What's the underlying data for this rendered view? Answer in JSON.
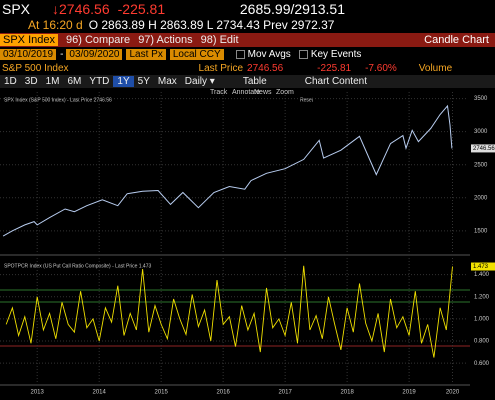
{
  "header": {
    "ticker": "SPX",
    "price": "↓2746.56",
    "change": "-225.81",
    "range": "2685.99/2913.51",
    "time": "At 16:20 d",
    "quote": "O 2863.89 H 2863.89 L 2734.43 Prev 2972.37"
  },
  "menu": {
    "security": "SPX Index",
    "items": [
      "96) Compare",
      "97) Actions",
      "98) Edit"
    ],
    "title": "Candle Chart"
  },
  "settings": {
    "start": "03/10/2019",
    "end": "03/09/2020",
    "field": "Last Px",
    "currency": "Local CCY",
    "options": [
      "Mov Avgs",
      "Key Events"
    ]
  },
  "info": {
    "name": "S&P 500 Index",
    "last_label": "Last Price",
    "last": "2746.56",
    "change": "-225.81",
    "pct": "-7.60%",
    "volume": "Volume"
  },
  "periods": [
    "1D",
    "3D",
    "1M",
    "6M",
    "YTD",
    "1Y",
    "5Y",
    "Max"
  ],
  "active_period": 5,
  "frequency": "Daily ▾",
  "table": "Table",
  "chart_content": "Chart Content",
  "tools": [
    "Track",
    "Annotate",
    "News",
    "Zoom"
  ],
  "reset": "Reset",
  "charts": [
    {
      "type": "line",
      "title": "SPX Index (S&P 500 Index) - Last Price 2746.56",
      "color": "#b8cdf0",
      "xlim": [
        2012.9,
        2020.45
      ],
      "ylim": [
        1180,
        3600
      ],
      "yticks": [
        1500,
        2000,
        2500,
        3000,
        3500
      ],
      "x": [
        2012.95,
        2013.1,
        2013.3,
        2013.45,
        2013.5,
        2013.7,
        2013.95,
        2014.1,
        2014.3,
        2014.55,
        2014.8,
        2014.95,
        2015.2,
        2015.45,
        2015.65,
        2015.85,
        2016.1,
        2016.35,
        2016.6,
        2016.85,
        2016.95,
        2017.2,
        2017.5,
        2017.8,
        2018.05,
        2018.12,
        2018.4,
        2018.7,
        2018.97,
        2019.2,
        2019.4,
        2019.45,
        2019.55,
        2019.65,
        2019.85,
        2020.0,
        2020.12,
        2020.16,
        2020.19
      ],
      "values": [
        1420,
        1500,
        1590,
        1640,
        1590,
        1700,
        1830,
        1790,
        1880,
        1970,
        1880,
        2060,
        2100,
        2110,
        1900,
        2080,
        1850,
        2080,
        2170,
        2130,
        2260,
        2370,
        2440,
        2580,
        2870,
        2600,
        2720,
        2930,
        2350,
        2820,
        2940,
        2750,
        3020,
        2850,
        3050,
        3260,
        3390,
        3100,
        2746.56
      ]
    },
    {
      "type": "line",
      "title": "SPOTPCR Index (US Put Call Ratio Composite) - Last Price 1.473",
      "color": "#f0e000",
      "xlim": [
        2012.9,
        2020.45
      ],
      "ylim": [
        0.43,
        1.55
      ],
      "yticks": [
        {
          "value": 0.6,
          "label": "0.600"
        },
        {
          "value": 0.8,
          "label": "0.800"
        },
        {
          "value": 1.0,
          "label": "1.000"
        },
        {
          "value": 1.2,
          "label": "1.200"
        },
        {
          "value": 1.4,
          "label": "1.400"
        }
      ],
      "xticks": [
        {
          "value": 2013.5,
          "label": "2013"
        },
        {
          "value": 2014.5,
          "label": "2014"
        },
        {
          "value": 2015.5,
          "label": "2015"
        },
        {
          "value": 2016.5,
          "label": "2016"
        },
        {
          "value": 2017.5,
          "label": "2017"
        },
        {
          "value": 2018.5,
          "label": "2018"
        },
        {
          "value": 2019.5,
          "label": "2019"
        },
        {
          "value": 2020.2,
          "label": "2020"
        }
      ],
      "x": [
        2013.0,
        2013.1,
        2013.2,
        2013.3,
        2013.4,
        2013.5,
        2013.6,
        2013.7,
        2013.8,
        2013.9,
        2014.0,
        2014.1,
        2014.2,
        2014.3,
        2014.4,
        2014.5,
        2014.6,
        2014.7,
        2014.8,
        2014.9,
        2015.0,
        2015.1,
        2015.2,
        2015.3,
        2015.4,
        2015.5,
        2015.6,
        2015.7,
        2015.8,
        2015.9,
        2016.0,
        2016.1,
        2016.2,
        2016.3,
        2016.4,
        2016.5,
        2016.6,
        2016.7,
        2016.8,
        2016.9,
        2017.0,
        2017.1,
        2017.2,
        2017.3,
        2017.4,
        2017.5,
        2017.6,
        2017.7,
        2017.8,
        2017.9,
        2018.0,
        2018.1,
        2018.2,
        2018.3,
        2018.4,
        2018.5,
        2018.6,
        2018.7,
        2018.8,
        2018.9,
        2019.0,
        2019.1,
        2019.2,
        2019.3,
        2019.4,
        2019.5,
        2019.6,
        2019.7,
        2019.8,
        2019.9,
        2020.0,
        2020.1,
        2020.2
      ],
      "values": [
        0.95,
        1.1,
        0.85,
        1.02,
        0.78,
        1.2,
        0.9,
        1.05,
        0.82,
        1.15,
        0.95,
        0.88,
        1.25,
        0.92,
        1.0,
        0.8,
        1.1,
        0.97,
        1.3,
        0.85,
        1.05,
        0.9,
        1.45,
        0.88,
        1.12,
        0.95,
        0.82,
        1.18,
        1.0,
        0.86,
        1.22,
        0.93,
        1.08,
        0.8,
        1.35,
        0.95,
        1.02,
        0.75,
        1.12,
        0.9,
        1.05,
        0.7,
        1.28,
        0.92,
        1.0,
        0.85,
        1.15,
        0.78,
        1.48,
        0.9,
        1.03,
        0.82,
        1.2,
        0.95,
        0.72,
        1.1,
        0.88,
        1.32,
        0.96,
        0.8,
        1.05,
        0.7,
        1.18,
        0.92,
        1.02,
        0.85,
        1.25,
        0.78,
        0.95,
        0.65,
        1.1,
        0.9,
        1.473
      ]
    }
  ]
}
